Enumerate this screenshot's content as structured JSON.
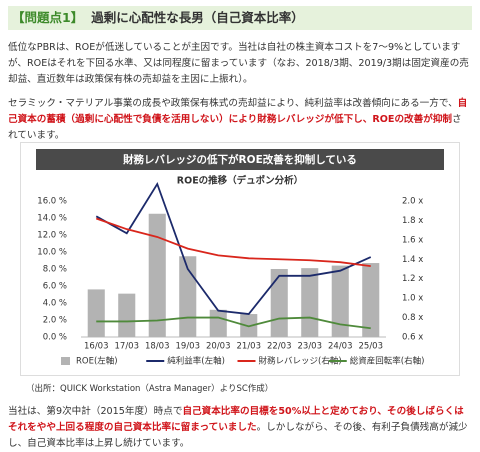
{
  "header": {
    "label": "【問題点1】",
    "title": "過剰に心配性な長男（自己資本比率）"
  },
  "paragraphs": [
    {
      "segments": [
        {
          "text": "低位なPBRは、ROEが低迷していることが主因です。当社は自社の株主資本コストを7～9%としていますが、ROEはそれを下回る水準、又は同程度に留まっています（なお、2018/3期、2019/3期は固定資産の売却益、直近数年は政策保有株の売却益を主因に上振れ）。",
          "emphasis": false
        }
      ]
    },
    {
      "segments": [
        {
          "text": "セラミック・マテリアル事業の成長や政策保有株式の売却益により、純利益率は改善傾向にある一方で、",
          "emphasis": false
        },
        {
          "text": "自己資本の蓄積（過剰に心配性で負債を活用しない）により財務レバレッジが低下し、ROEの改善が抑制",
          "emphasis": true
        },
        {
          "text": "されています。",
          "emphasis": false
        }
      ]
    }
  ],
  "chart_data": {
    "type": "combo",
    "title": "財務レバレッジの低下がROE改善を抑制している",
    "subtitle": "ROEの推移（デュポン分析）",
    "categories": [
      "16/03",
      "17/03",
      "18/03",
      "19/03",
      "20/03",
      "21/03",
      "22/03",
      "23/03",
      "24/03",
      "25/03"
    ],
    "series": [
      {
        "name": "ROE(左軸)",
        "type": "bar",
        "axis": "y",
        "color": "#b3b3b3",
        "values": [
          5.6,
          5.1,
          14.5,
          9.5,
          3.2,
          2.7,
          8.0,
          8.1,
          8.4,
          8.7
        ]
      },
      {
        "name": "純利益率(左軸)",
        "type": "line",
        "axis": "y",
        "color": "#1c2a6b",
        "values": [
          14.2,
          12.2,
          18.0,
          8.0,
          3.1,
          2.7,
          7.2,
          7.2,
          7.8,
          9.4
        ]
      },
      {
        "name": "財務レバレッジ(右軸)",
        "type": "line",
        "axis": "y2",
        "color": "#d9261c",
        "values": [
          1.82,
          1.71,
          1.63,
          1.51,
          1.44,
          1.41,
          1.4,
          1.39,
          1.37,
          1.33
        ]
      },
      {
        "name": "総資産回転率(右軸)",
        "type": "line",
        "axis": "y2",
        "color": "#4f8a3b",
        "values": [
          0.76,
          0.76,
          0.77,
          0.8,
          0.8,
          0.71,
          0.79,
          0.8,
          0.73,
          0.69
        ]
      }
    ],
    "ylim": [
      0,
      16
    ],
    "yticks": [
      {
        "value": 0,
        "label": "0.0 %"
      },
      {
        "value": 2,
        "label": "2.0 %"
      },
      {
        "value": 4,
        "label": "4.0 %"
      },
      {
        "value": 6,
        "label": "6.0 %"
      },
      {
        "value": 8,
        "label": "8.0 %"
      },
      {
        "value": 10,
        "label": "10.0 %"
      },
      {
        "value": 12,
        "label": "12.0 %"
      },
      {
        "value": 14,
        "label": "14.0 %"
      },
      {
        "value": 16,
        "label": "16.0 %"
      }
    ],
    "y2lim": [
      0.6,
      2.0
    ],
    "y2ticks": [
      {
        "value": 0.6,
        "label": "0.6 x"
      },
      {
        "value": 0.8,
        "label": "0.8 x"
      },
      {
        "value": 1.0,
        "label": "1.0 x"
      },
      {
        "value": 1.2,
        "label": "1.2 x"
      },
      {
        "value": 1.4,
        "label": "1.4 x"
      },
      {
        "value": 1.6,
        "label": "1.6 x"
      },
      {
        "value": 1.8,
        "label": "1.8 x"
      },
      {
        "value": 2.0,
        "label": "2.0 x"
      }
    ],
    "grid": false,
    "legend": "bottom"
  },
  "source": "（出所：QUICK Workstation（Astra Manager）よりSC作成）",
  "closing": {
    "segments": [
      {
        "text": "当社は、第9次中計（2015年度）時点で",
        "emphasis": false
      },
      {
        "text": "自己資本比率の目標を50%以上と定めており、その後しばらくはそれをやや上回る程度の自己資本比率に留まっていました",
        "emphasis": true
      },
      {
        "text": "。しかしながら、その後、有利子負債残高が減少し、自己資本比率は上昇し続けています。",
        "emphasis": false
      }
    ]
  }
}
